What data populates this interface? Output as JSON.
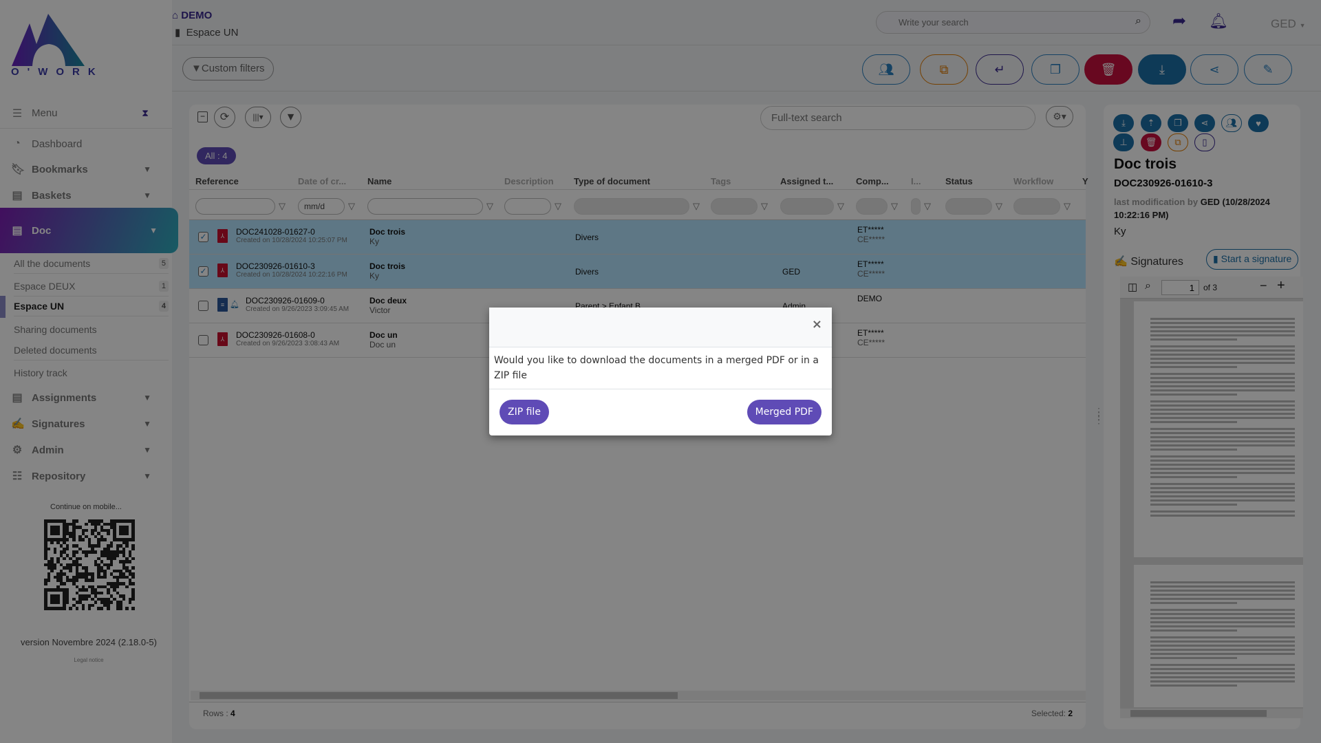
{
  "logo": {
    "text": "O'WORK"
  },
  "header": {
    "workspace": "DEMO",
    "space": "Espace UN",
    "search_placeholder": "Write your search",
    "user": "GED"
  },
  "toolbar": {
    "custom_filters": "Custom filters"
  },
  "sidebar": {
    "menu": "Menu",
    "items": [
      {
        "label": "Dashboard",
        "icon": "dashboard-icon"
      },
      {
        "label": "Bookmarks",
        "icon": "bookmark-icon"
      },
      {
        "label": "Baskets",
        "icon": "basket-icon"
      },
      {
        "label": "Doc",
        "icon": "book-icon"
      }
    ],
    "subitems": [
      {
        "label": "All the documents",
        "count": "5"
      },
      {
        "label": "Espace DEUX",
        "count": "1"
      },
      {
        "label": "Espace UN",
        "count": "4"
      },
      {
        "label": "Sharing documents"
      },
      {
        "label": "Deleted documents"
      },
      {
        "label": "History track"
      }
    ],
    "more": [
      {
        "label": "Assignments"
      },
      {
        "label": "Signatures"
      },
      {
        "label": "Admin"
      },
      {
        "label": "Repository"
      }
    ],
    "mobile": "Continue on mobile...",
    "version": "version Novembre 2024 (2.18.0-5)",
    "legal": "Legal notice"
  },
  "table": {
    "fulltext_placeholder": "Full-text search",
    "all_badge": "All : 4",
    "date_placeholder": "mm/d",
    "columns": [
      "Reference",
      "Date of cr...",
      "Name",
      "Description",
      "Type of document",
      "Tags",
      "Assigned t...",
      "Comp...",
      "I...",
      "Status",
      "Workflow",
      "Y"
    ],
    "rows": [
      {
        "selected": true,
        "icon": "pdf",
        "ref": "DOC241028-01627-0",
        "created": "Created on 10/28/2024 10:25:07 PM",
        "name": "Doc trois",
        "desc": "Ky",
        "type": "Divers",
        "assigned": "",
        "comp1": "ET*****",
        "comp2": "CE*****"
      },
      {
        "selected": true,
        "icon": "pdf",
        "ref": "DOC230926-01610-3",
        "created": "Created on 10/28/2024 10:22:16 PM",
        "name": "Doc trois",
        "desc": "Ky",
        "type": "Divers",
        "assigned": "GED",
        "comp1": "ET*****",
        "comp2": "CE*****"
      },
      {
        "selected": false,
        "icon": "doc",
        "ref": "DOC230926-01609-0",
        "created": "Created on 9/26/2023 3:09:45 AM",
        "name": "Doc deux",
        "desc": "Victor",
        "type": "Parent > Enfant B",
        "assigned": "Admin",
        "comp1": "DEMO",
        "comp2": ""
      },
      {
        "selected": false,
        "icon": "pdf",
        "ref": "DOC230926-01608-0",
        "created": "Created on 9/26/2023 3:08:43 AM",
        "name": "Doc un",
        "desc": "Doc un",
        "type": "",
        "assigned": "",
        "comp1": "ET*****",
        "comp2": "CE*****"
      }
    ],
    "rows_label": "Rows :",
    "rows_count": "4",
    "selected_label": "Selected:",
    "selected_count": "2"
  },
  "details": {
    "title": "Doc trois",
    "ref": "DOC230926-01610-3",
    "mod_label": "last modification by",
    "mod_value": "GED (10/28/2024 10:22:16 PM)",
    "desc": "Ky",
    "signatures": "Signatures",
    "start_signature": "Start a signature",
    "page": "1",
    "of_pages": "of 3"
  },
  "modal": {
    "message": "Would you like to download the documents in a merged PDF or in a ZIP file",
    "zip": "ZIP file",
    "merged": "Merged PDF",
    "close": "×"
  },
  "colors": {
    "accent": "#5f4bb6",
    "primary": "#1b6fa8",
    "danger": "#c8103e",
    "warning": "#e07b00",
    "selected_row": "#b5e5ff"
  }
}
